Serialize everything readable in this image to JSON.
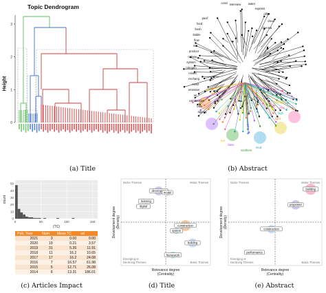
{
  "panel_a": {
    "title": "Topic Dendrogram",
    "ylabel": "Height",
    "yticks": [
      "0",
      "1",
      "2",
      "3"
    ],
    "caption": "(a) Title"
  },
  "panel_b": {
    "caption": "(b) Abstract",
    "labels": [
      "coral",
      "interview",
      "water",
      "express",
      "differ",
      "cloud",
      "chennai",
      "pacif",
      "food",
      "fresh",
      "stable",
      "flow",
      "rice",
      "product",
      "railway",
      "system",
      "nitrogen",
      "mixed",
      "exchang",
      "coast",
      "emission",
      "air",
      "combination",
      "ratio",
      "aggreg",
      "strength",
      "play",
      "high",
      "light",
      "base",
      "nonthem",
      "mod",
      "tool"
    ]
  },
  "panel_c": {
    "caption": "(c) Articles Impact",
    "xlabel": "(TC)",
    "ylabel": "count",
    "table": {
      "headers": [
        "Pub. Year",
        "Num",
        "Mean TC",
        "sd"
      ],
      "rows": [
        [
          "2021",
          "3",
          "0.00",
          "0.00"
        ],
        [
          "2020",
          "19",
          "0.21",
          "3.57"
        ],
        [
          "2019",
          "31",
          "5.35",
          "11.91"
        ],
        [
          "2018",
          "11",
          "16.2",
          "10.65"
        ],
        [
          "2017",
          "17",
          "16.2",
          "24.08"
        ],
        [
          "2016",
          "7",
          "16.57",
          "61.98"
        ],
        [
          "2015",
          "5",
          "12.71",
          "26.08"
        ],
        [
          "2014",
          "6",
          "13.31",
          "186.01"
        ]
      ]
    },
    "chart_data": {
      "type": "bar",
      "xlabel": "(TC)",
      "ylabel": "count",
      "xticks": [
        "0",
        "50",
        "100",
        "150"
      ],
      "yticks": [
        "0",
        "10",
        "20",
        "30",
        "40",
        "50"
      ],
      "ylim": [
        0,
        55
      ],
      "xlim": [
        0,
        160
      ],
      "bins": [
        0,
        5,
        10,
        15,
        20,
        25,
        30,
        35,
        40,
        45,
        50,
        55,
        60,
        65,
        70,
        75,
        80,
        85,
        90,
        95,
        100,
        105,
        110
      ],
      "values": [
        48,
        14,
        9,
        6,
        3,
        2,
        2,
        1,
        1,
        1,
        0,
        1,
        0,
        0,
        0,
        0,
        1,
        0,
        0,
        0,
        0,
        0,
        1
      ]
    }
  },
  "panel_d": {
    "caption": "(d) Title",
    "xlabel": "Relevance degree",
    "xlabel2": "(Centrality)",
    "ylabel": "Development degree",
    "ylabel2": "(Density)",
    "quadrants": {
      "tl": "Niche Themes",
      "tr": "Motor Themes",
      "bl": "Emerging or\nDeclining Themes",
      "br": "Basic Themes"
    },
    "chart_data": {
      "type": "scatter",
      "xlabel": "Relevance degree (Centrality)",
      "ylabel": "Development degree (Density)",
      "points": [
        {
          "label": "developing",
          "x": 0.42,
          "y": 0.86,
          "r": 0.1,
          "color": "#c7b6e6"
        },
        {
          "label": "model",
          "x": 0.52,
          "y": 0.84,
          "r": 0.06,
          "color": "#c7b6e6"
        },
        {
          "label": "learning",
          "x": 0.28,
          "y": 0.74,
          "r": 0.05,
          "color": "#f3a7c6"
        },
        {
          "label": "digital",
          "x": 0.25,
          "y": 0.68,
          "r": 0.04,
          "color": "#f3a7c6"
        },
        {
          "label": "construction",
          "x": 0.72,
          "y": 0.46,
          "r": 0.12,
          "color": "#e9b98f"
        },
        {
          "label": "system",
          "x": 0.62,
          "y": 0.4,
          "r": 0.07,
          "color": "#a8dbe8"
        },
        {
          "label": "building",
          "x": 0.8,
          "y": 0.26,
          "r": 0.1,
          "color": "#bcd6f2"
        },
        {
          "label": "framework",
          "x": 0.58,
          "y": 0.12,
          "r": 0.08,
          "color": "#b7e3c4"
        }
      ]
    }
  },
  "panel_e": {
    "caption": "(e) Abstract",
    "xlabel": "Relevance degree",
    "xlabel2": "(Centrality)",
    "ylabel": "Development degree",
    "ylabel2": "(Density)",
    "quadrants": {
      "tl": "Niche Themes",
      "tr": "Motor Themes",
      "bl": "Emerging or\nDeclining Themes",
      "br": "Basic Themes"
    },
    "chart_data": {
      "type": "scatter",
      "xlabel": "Relevance degree (Centrality)",
      "ylabel": "Development degree (Density)",
      "points": [
        {
          "label": "building",
          "x": 0.88,
          "y": 0.88,
          "r": 0.12,
          "color": "#f3a7c6"
        },
        {
          "label": "proposed",
          "x": 0.72,
          "y": 0.7,
          "r": 0.1,
          "color": "#c7b6e6"
        },
        {
          "label": "construction",
          "x": 0.46,
          "y": 0.42,
          "r": 0.09,
          "color": "#bcd6f2"
        },
        {
          "label": "performance",
          "x": 0.28,
          "y": 0.15,
          "r": 0.05,
          "color": "#a8dbe8"
        }
      ]
    }
  }
}
